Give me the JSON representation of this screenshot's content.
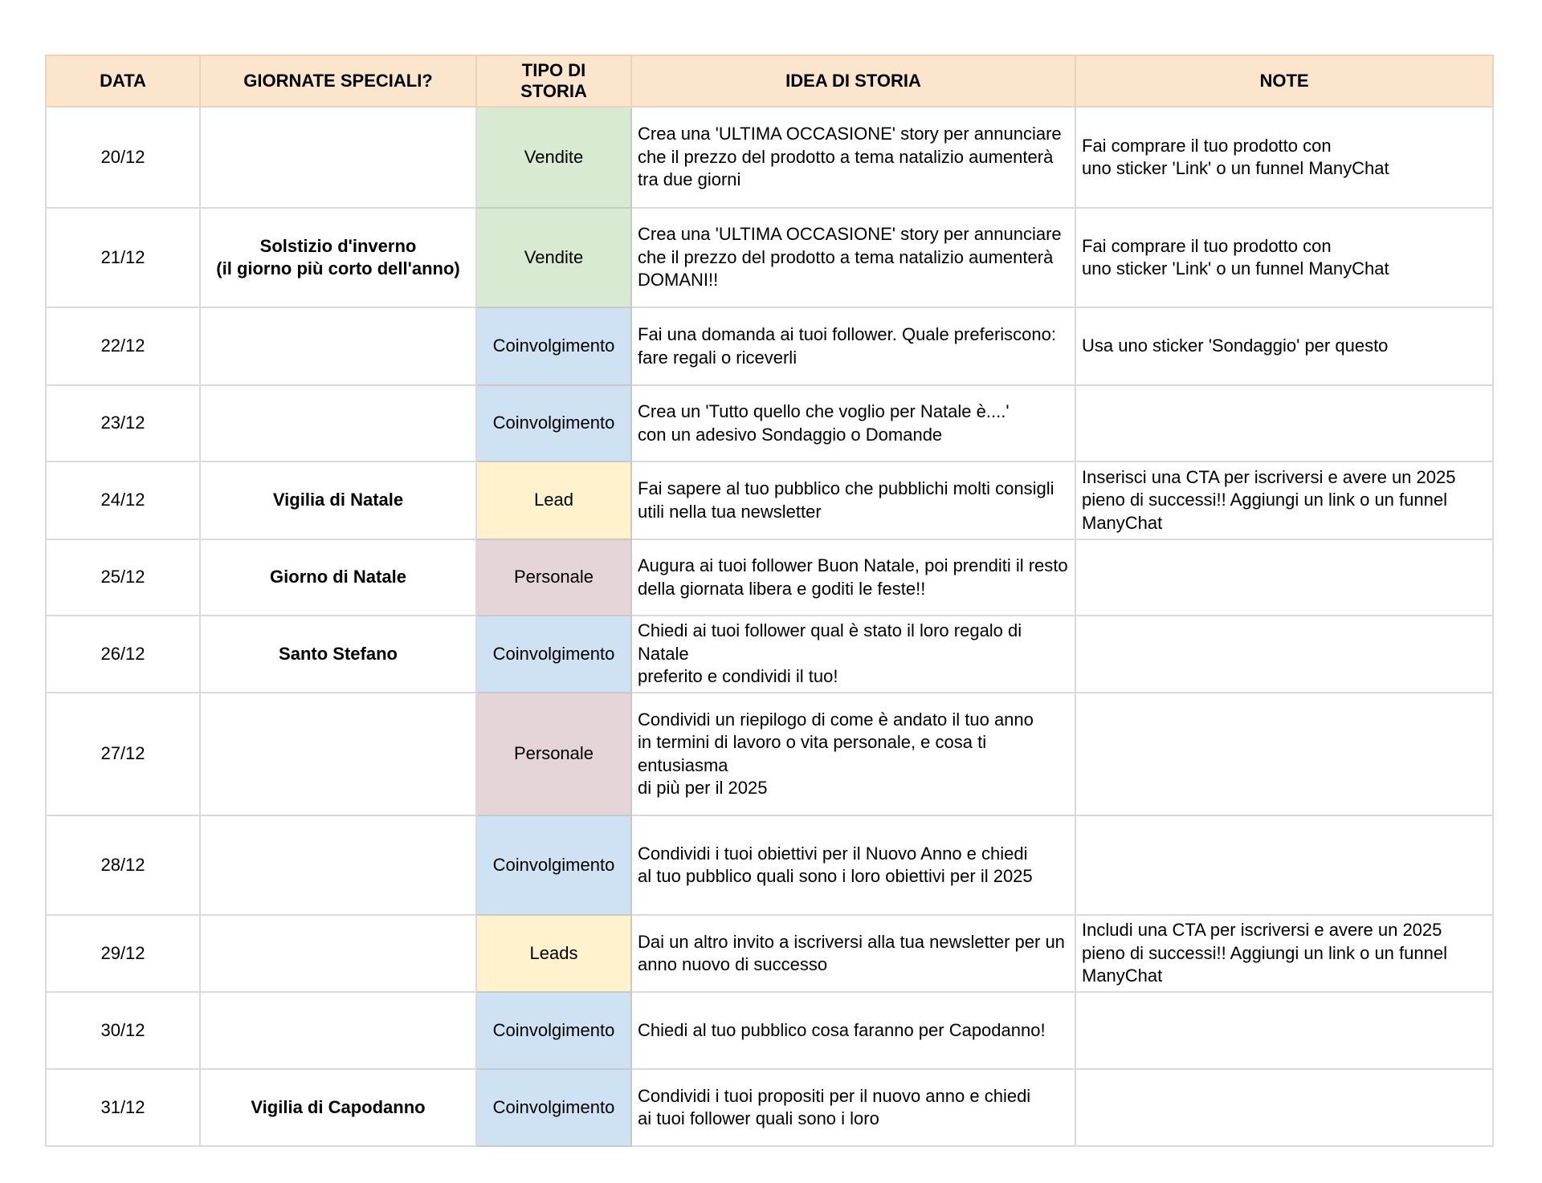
{
  "colors": {
    "header": "#fce5cd",
    "Vendite": "#d9ead3",
    "Coinvolgimento": "#cfe2f3",
    "Lead": "#fff2cc",
    "Leads": "#fff2cc",
    "Personale": "#e6d5d8"
  },
  "headers": [
    "DATA",
    "GIORNATE SPECIALI?",
    "TIPO DI\nSTORIA",
    "IDEA DI STORIA",
    "NOTE"
  ],
  "rows": [
    {
      "date": "20/12",
      "special": "",
      "type": "Vendite",
      "idea": "Crea una 'ULTIMA OCCASIONE' story per annunciare\nche il prezzo del prodotto a tema natalizio aumenterà tra due giorni",
      "note": "Fai comprare il tuo prodotto con\nuno sticker 'Link' o un funnel ManyChat"
    },
    {
      "date": "21/12",
      "special": "Solstizio d'inverno\n(il giorno più corto dell'anno)",
      "type": "Vendite",
      "idea": "Crea una 'ULTIMA OCCASIONE' story per annunciare\nche il prezzo del prodotto a tema natalizio aumenterà DOMANI!!",
      "note": "Fai comprare il tuo prodotto con\nuno sticker 'Link' o un funnel ManyChat"
    },
    {
      "date": "22/12",
      "special": "",
      "type": "Coinvolgimento",
      "idea": "Fai una domanda ai tuoi follower. Quale preferiscono:\nfare regali o riceverli",
      "note": "Usa uno sticker 'Sondaggio' per questo"
    },
    {
      "date": "23/12",
      "special": "",
      "type": "Coinvolgimento",
      "idea": "Crea un 'Tutto quello che voglio per Natale è....'\ncon un adesivo Sondaggio o Domande",
      "note": ""
    },
    {
      "date": "24/12",
      "special": "Vigilia di Natale",
      "type": "Lead",
      "idea": "Fai sapere al tuo pubblico che pubblichi molti consigli utili nella tua newsletter",
      "note": "Inserisci una CTA per iscriversi e avere un 2025 pieno di successi!! Aggiungi un link o un funnel ManyChat"
    },
    {
      "date": "25/12",
      "special": "Giorno di Natale",
      "type": "Personale",
      "idea": "Augura ai tuoi follower Buon Natale, poi prenditi il resto della giornata libera e goditi le feste!!",
      "note": ""
    },
    {
      "date": "26/12",
      "special": "Santo Stefano",
      "type": "Coinvolgimento",
      "idea": "Chiedi ai tuoi follower qual è stato il loro regalo di Natale\npreferito e condividi il tuo!",
      "note": ""
    },
    {
      "date": "27/12",
      "special": "",
      "type": "Personale",
      "idea": "Condividi un riepilogo di come è andato il tuo anno\nin termini di lavoro o vita personale, e cosa ti entusiasma\ndi più per il 2025",
      "note": ""
    },
    {
      "date": "28/12",
      "special": "",
      "type": "Coinvolgimento",
      "idea": "Condividi i tuoi obiettivi per il Nuovo Anno e chiedi\nal tuo pubblico quali sono i loro obiettivi per il 2025",
      "note": ""
    },
    {
      "date": "29/12",
      "special": "",
      "type": "Leads",
      "idea": "Dai un altro invito a iscriversi alla tua newsletter per un anno nuovo di successo",
      "note": "Includi una CTA per iscriversi e avere un 2025 pieno di successi!! Aggiungi un link o un funnel ManyChat"
    },
    {
      "date": "30/12",
      "special": "",
      "type": "Coinvolgimento",
      "idea": "Chiedi al tuo pubblico cosa faranno per Capodanno!",
      "note": ""
    },
    {
      "date": "31/12",
      "special": "Vigilia di Capodanno",
      "type": "Coinvolgimento",
      "idea": "Condividi i tuoi propositi per il nuovo anno e chiedi\nai tuoi follower quali sono i loro",
      "note": ""
    }
  ]
}
